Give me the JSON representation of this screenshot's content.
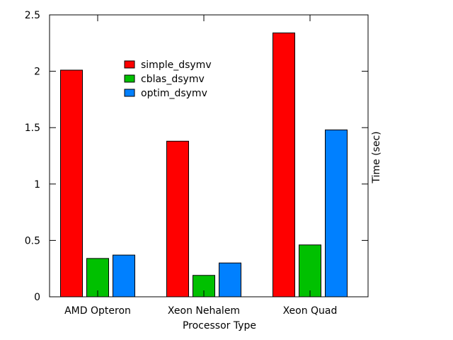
{
  "chart_data": {
    "type": "bar",
    "title": "",
    "xlabel": "Processor Type",
    "ylabel": "Time (sec)",
    "ylim": [
      0,
      2.5
    ],
    "yticks": [
      "0",
      "0.5",
      "1",
      "1.5",
      "2",
      "2.5"
    ],
    "categories": [
      "AMD Opteron",
      "Xeon Nehalem",
      "Xeon Quad"
    ],
    "series": [
      {
        "name": "simple_dsymv",
        "color": "#ff0000",
        "values": [
          2.01,
          1.38,
          2.34
        ]
      },
      {
        "name": "cblas_dsymv",
        "color": "#00c000",
        "values": [
          0.34,
          0.19,
          0.46
        ]
      },
      {
        "name": "optim_dsymv",
        "color": "#0080ff",
        "values": [
          0.37,
          0.3,
          1.48
        ]
      }
    ],
    "legend_position": "top-left",
    "grid": false
  }
}
